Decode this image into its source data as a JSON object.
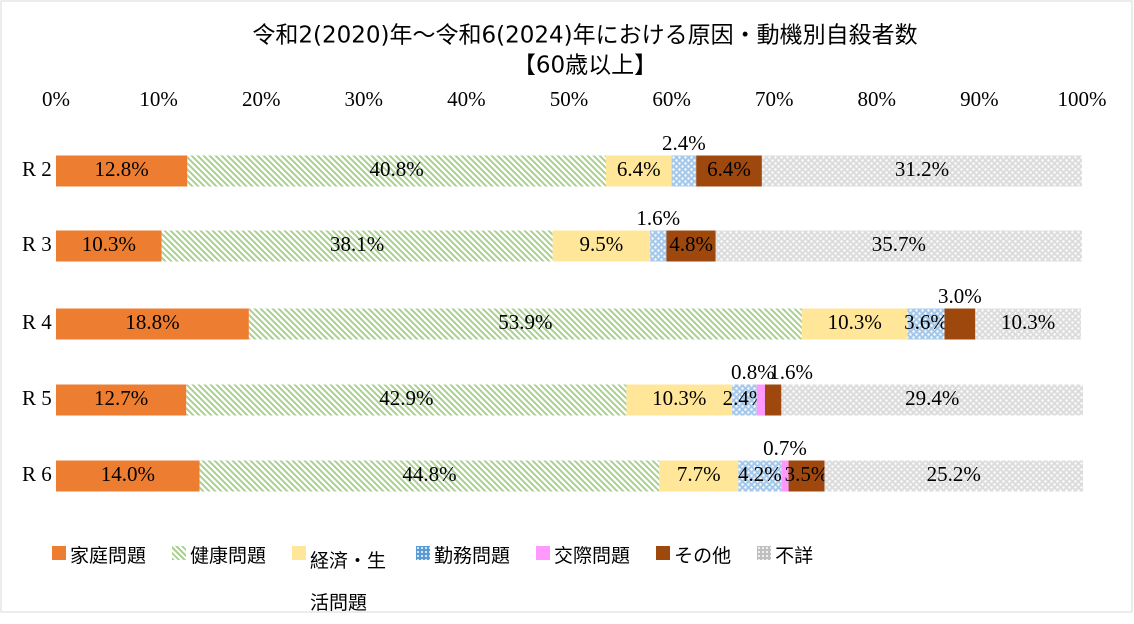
{
  "chart_data": {
    "type": "stacked_barh",
    "title": "令和2(2020)年～令和6(2024)年における原因・動機別自殺者数",
    "subtitle": "【60歳以上】",
    "categories": [
      "R 2",
      "R 3",
      "R 4",
      "R 5",
      "R 6"
    ],
    "xlim": [
      0,
      100
    ],
    "xticks": [
      {
        "value": 0,
        "label": "0%"
      },
      {
        "value": 10,
        "label": "10%"
      },
      {
        "value": 20,
        "label": "20%"
      },
      {
        "value": 30,
        "label": "30%"
      },
      {
        "value": 40,
        "label": "40%"
      },
      {
        "value": 50,
        "label": "50%"
      },
      {
        "value": 60,
        "label": "60%"
      },
      {
        "value": 70,
        "label": "70%"
      },
      {
        "value": 80,
        "label": "80%"
      },
      {
        "value": 90,
        "label": "90%"
      },
      {
        "value": 100,
        "label": "100%"
      }
    ],
    "legend": "bottom",
    "series": [
      {
        "name": "家庭問題",
        "color": "#ed7d31",
        "fill": "solid",
        "values": [
          12.8,
          10.3,
          18.8,
          12.7,
          14.0
        ],
        "value_labels": [
          "12.8%",
          "10.3%",
          "18.8%",
          "12.7%",
          "14.0%"
        ]
      },
      {
        "name": "健康問題",
        "color": "#a9d18e",
        "fill": "hatch",
        "values": [
          40.8,
          38.1,
          53.9,
          42.9,
          44.8
        ],
        "value_labels": [
          "40.8%",
          "38.1%",
          "53.9%",
          "42.9%",
          "44.8%"
        ]
      },
      {
        "name": "経済・生活問題",
        "color": "#ffe699",
        "fill": "solid",
        "values": [
          6.4,
          9.5,
          10.3,
          10.3,
          7.7
        ],
        "value_labels": [
          "6.4%",
          "9.5%",
          "10.3%",
          "10.3%",
          "7.7%"
        ]
      },
      {
        "name": "勤務問題",
        "color": "#5b9bd5",
        "fill": "dots",
        "values": [
          2.4,
          1.6,
          3.6,
          2.4,
          4.2
        ],
        "value_labels": [
          "2.4%",
          "1.6%",
          "3.6%",
          "2.4%",
          "4.2%"
        ]
      },
      {
        "name": "交際問題",
        "color": "#ff99ff",
        "fill": "solid",
        "values": [
          null,
          null,
          null,
          0.8,
          0.7
        ],
        "value_labels": [
          null,
          null,
          null,
          "0.8%",
          "0.7%"
        ]
      },
      {
        "name": "その他",
        "color": "#9e480e",
        "fill": "solid",
        "values": [
          6.4,
          4.8,
          3.0,
          1.6,
          3.5
        ],
        "value_labels": [
          "6.4%",
          "4.8%",
          "3.0%",
          "1.6%",
          "3.5%"
        ]
      },
      {
        "name": "不詳",
        "color": "#bfbfbf",
        "fill": "dots",
        "values": [
          31.2,
          35.7,
          10.3,
          29.4,
          25.2
        ],
        "value_labels": [
          "31.2%",
          "35.7%",
          "10.3%",
          "29.4%",
          "25.2%"
        ]
      }
    ]
  }
}
